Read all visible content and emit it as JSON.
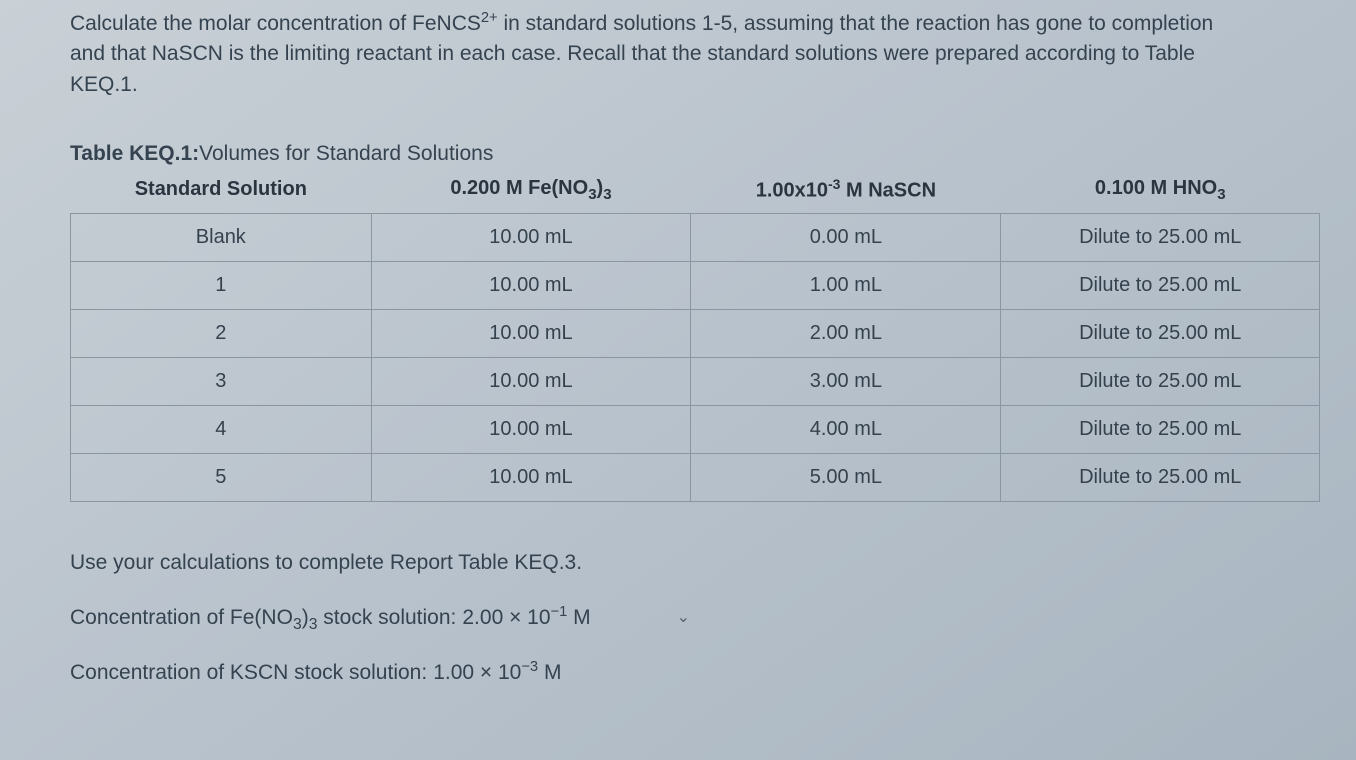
{
  "question": {
    "line1_pre": "Calculate the molar concentration of FeNCS",
    "line1_sup": "2+",
    "line1_post": " in standard solutions 1-5, assuming that the reaction has gone to completion",
    "line2": "and that NaSCN is the limiting reactant in each case. Recall that the standard solutions were prepared according to Table",
    "line3": "KEQ.1."
  },
  "table": {
    "title_label": "Table KEQ.1:",
    "title_text": "Volumes for Standard Solutions",
    "headers": {
      "c1": "Standard Solution",
      "c2_pre": "0.200 M Fe(NO",
      "c2_sub1": "3",
      "c2_mid": ")",
      "c2_sub2": "3",
      "c3_pre": "1.00x10",
      "c3_sup": "-3",
      "c3_post": " M NaSCN",
      "c4_pre": "0.100 M HNO",
      "c4_sub": "3"
    },
    "rows": [
      {
        "sol": "Blank",
        "fe": "10.00 mL",
        "nascn": "0.00 mL",
        "hno3": "Dilute to 25.00 mL"
      },
      {
        "sol": "1",
        "fe": "10.00 mL",
        "nascn": "1.00 mL",
        "hno3": "Dilute to 25.00 mL"
      },
      {
        "sol": "2",
        "fe": "10.00 mL",
        "nascn": "2.00 mL",
        "hno3": "Dilute to 25.00 mL"
      },
      {
        "sol": "3",
        "fe": "10.00 mL",
        "nascn": "3.00 mL",
        "hno3": "Dilute to 25.00 mL"
      },
      {
        "sol": "4",
        "fe": "10.00 mL",
        "nascn": "4.00 mL",
        "hno3": "Dilute to 25.00 mL"
      },
      {
        "sol": "5",
        "fe": "10.00 mL",
        "nascn": "5.00 mL",
        "hno3": "Dilute to 25.00 mL"
      }
    ]
  },
  "below": {
    "instruction": "Use your calculations to complete Report Table KEQ.3.",
    "conc_fe_label_pre": "Concentration of Fe(NO",
    "conc_fe_sub1": "3",
    "conc_fe_mid": ")",
    "conc_fe_sub2": "3",
    "conc_fe_label_post": " stock solution:",
    "conc_fe_value_pre": "2.00 × 10",
    "conc_fe_value_sup": "−1",
    "conc_fe_value_post": " M",
    "conc_kscn_label": "Concentration of KSCN stock solution:",
    "conc_kscn_value_pre": "1.00 × 10",
    "conc_kscn_value_sup": "−3",
    "conc_kscn_value_post": " M",
    "chevron": "⌄"
  },
  "style": {
    "text_color": "#354350",
    "border_color": "#8a97a3",
    "font_size_body": 21,
    "font_size_cell": 20
  }
}
